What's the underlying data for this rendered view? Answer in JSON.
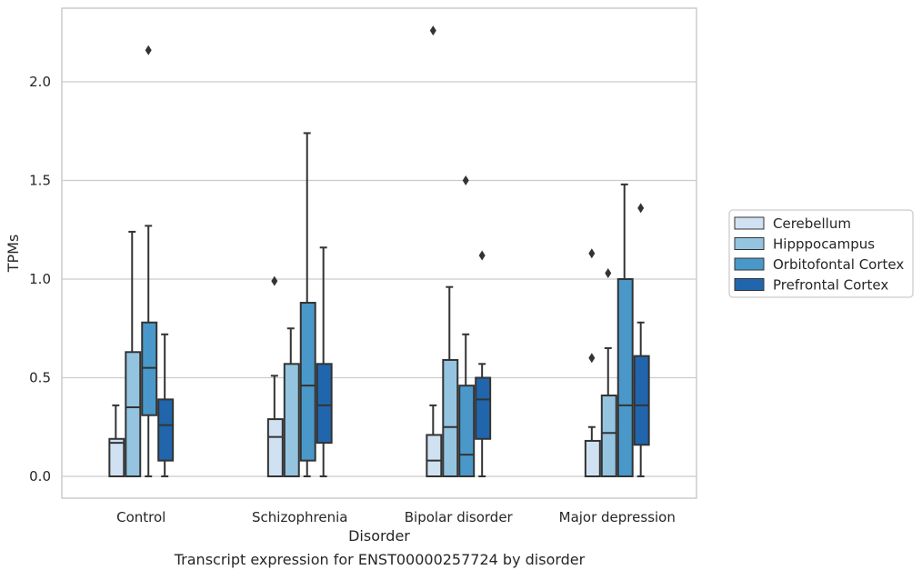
{
  "chart_data": {
    "type": "box",
    "xlabel": "Disorder",
    "ylabel": "TPMs",
    "ylim": [
      -0.11,
      2.38
    ],
    "yticks": [
      0.0,
      0.5,
      1.0,
      1.5,
      2.0
    ],
    "ytick_labels": [
      "0.0",
      "0.5",
      "1.0",
      "1.5",
      "2.0"
    ],
    "categories": [
      "Control",
      "Schizophrenia",
      "Bipolar disorder",
      "Major depression"
    ],
    "grid": "horizontal",
    "legend_position": "right",
    "series": [
      {
        "name": "Cerebellum",
        "color": "#d0e1f2",
        "boxes": [
          {
            "whisker_low": 0.0,
            "q1": 0.0,
            "median": 0.17,
            "q3": 0.19,
            "whisker_high": 0.36,
            "outliers": []
          },
          {
            "whisker_low": 0.0,
            "q1": 0.0,
            "median": 0.2,
            "q3": 0.29,
            "whisker_high": 0.51,
            "outliers": [
              0.99
            ]
          },
          {
            "whisker_low": 0.0,
            "q1": 0.0,
            "median": 0.08,
            "q3": 0.21,
            "whisker_high": 0.36,
            "outliers": [
              2.26
            ]
          },
          {
            "whisker_low": 0.0,
            "q1": 0.0,
            "median": 0.0,
            "q3": 0.18,
            "whisker_high": 0.25,
            "outliers": [
              0.6,
              1.13
            ]
          }
        ]
      },
      {
        "name": "Hipppocampus",
        "color": "#94c4df",
        "boxes": [
          {
            "whisker_low": 0.0,
            "q1": 0.0,
            "median": 0.35,
            "q3": 0.63,
            "whisker_high": 1.24,
            "outliers": []
          },
          {
            "whisker_low": 0.0,
            "q1": 0.0,
            "median": 0.0,
            "q3": 0.57,
            "whisker_high": 0.75,
            "outliers": []
          },
          {
            "whisker_low": 0.0,
            "q1": 0.0,
            "median": 0.25,
            "q3": 0.59,
            "whisker_high": 0.96,
            "outliers": []
          },
          {
            "whisker_low": 0.0,
            "q1": 0.0,
            "median": 0.22,
            "q3": 0.41,
            "whisker_high": 0.65,
            "outliers": [
              1.03
            ]
          }
        ]
      },
      {
        "name": "Orbitofontal Cortex",
        "color": "#4a98c9",
        "boxes": [
          {
            "whisker_low": 0.0,
            "q1": 0.31,
            "median": 0.55,
            "q3": 0.78,
            "whisker_high": 1.27,
            "outliers": [
              2.16
            ]
          },
          {
            "whisker_low": 0.0,
            "q1": 0.08,
            "median": 0.46,
            "q3": 0.88,
            "whisker_high": 1.74,
            "outliers": []
          },
          {
            "whisker_low": 0.0,
            "q1": 0.0,
            "median": 0.11,
            "q3": 0.46,
            "whisker_high": 0.72,
            "outliers": [
              1.5
            ]
          },
          {
            "whisker_low": 0.0,
            "q1": 0.0,
            "median": 0.36,
            "q3": 1.0,
            "whisker_high": 1.48,
            "outliers": []
          }
        ]
      },
      {
        "name": "Prefrontal Cortex",
        "color": "#2166ac",
        "boxes": [
          {
            "whisker_low": 0.0,
            "q1": 0.08,
            "median": 0.26,
            "q3": 0.39,
            "whisker_high": 0.72,
            "outliers": []
          },
          {
            "whisker_low": 0.0,
            "q1": 0.17,
            "median": 0.36,
            "q3": 0.57,
            "whisker_high": 1.16,
            "outliers": []
          },
          {
            "whisker_low": 0.0,
            "q1": 0.19,
            "median": 0.39,
            "q3": 0.5,
            "whisker_high": 0.57,
            "outliers": [
              1.12
            ]
          },
          {
            "whisker_low": 0.0,
            "q1": 0.16,
            "median": 0.36,
            "q3": 0.61,
            "whisker_high": 0.78,
            "outliers": [
              1.36
            ]
          }
        ]
      }
    ],
    "caption": "Transcript expression for ENST00000257724 by disorder",
    "grid_color": "#cccccc",
    "box_edge_color": "#333333"
  }
}
